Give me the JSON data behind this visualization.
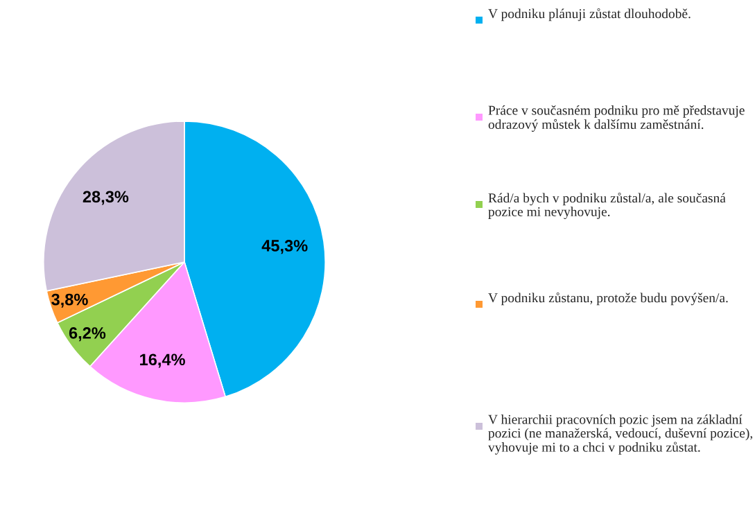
{
  "chart_data": {
    "type": "pie",
    "categories": [
      "V podniku plánuji zůstat dlouhodobě.",
      "Práce v současném podniku pro mě představuje odrazový můstek k dalšímu zaměstnání.",
      "Rád/a bych v podniku zůstal/a, ale současná pozice mi nevyhovuje.",
      "V podniku zůstanu, protože budu povýšen/a.",
      "V hierarchii pracovních pozic jsem na základní pozici (ne manažerská, vedoucí, duševní pozice), vyhovuje mi to a chci v podniku zůstat."
    ],
    "values": [
      45.3,
      16.4,
      6.2,
      3.8,
      28.3
    ],
    "value_labels": [
      "45,3%",
      "16,4%",
      "6,2%",
      "3,8%",
      "28,3%"
    ],
    "colors": [
      "#00b0f0",
      "#ff99ff",
      "#92d050",
      "#ff9933",
      "#ccc0da"
    ],
    "legend": "right"
  }
}
